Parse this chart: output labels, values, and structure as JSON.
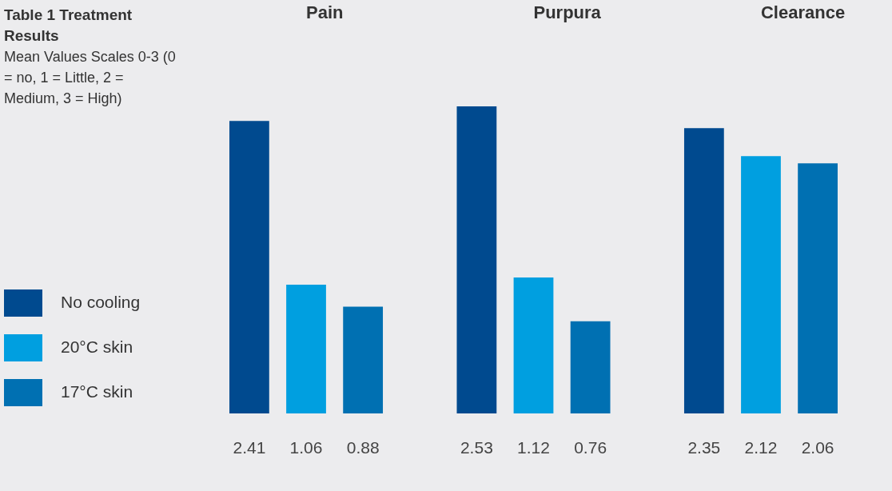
{
  "chart_data": {
    "type": "bar",
    "title": "Table 1 Treatment Results",
    "subtitle": "Mean Values Scales 0-3 (0 = no, 1 = Little, 2 = Medium, 3 = High)",
    "categories": [
      "Pain",
      "Purpura",
      "Clearance"
    ],
    "series": [
      {
        "name": "No cooling",
        "color": "#004a8f",
        "values": [
          2.41,
          2.53,
          2.35
        ]
      },
      {
        "name": "20°C skin",
        "color": "#009fe0",
        "values": [
          1.06,
          1.12,
          2.12
        ]
      },
      {
        "name": "17°C skin",
        "color": "#0070b2",
        "values": [
          0.88,
          0.76,
          2.06
        ]
      }
    ],
    "data_labels": true,
    "legend": "left",
    "grid": false,
    "tick_labels": "x"
  }
}
